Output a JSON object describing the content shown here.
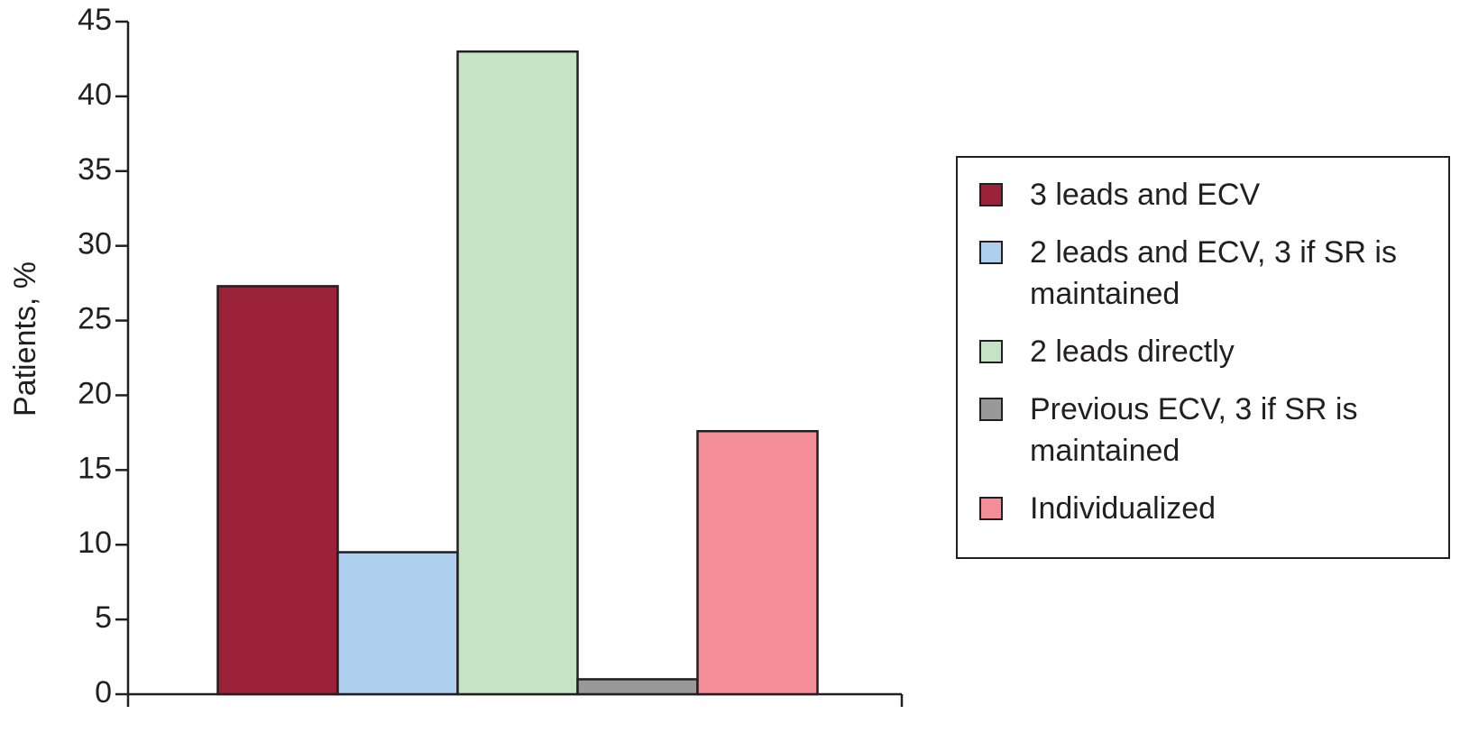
{
  "chart_data": {
    "type": "bar",
    "y_label": "Patients, %",
    "categories": [
      null
    ],
    "series": [
      {
        "name": "3 leads and ECV",
        "color": "#9b2238",
        "values": [
          27.3
        ]
      },
      {
        "name": "2 leads and ECV, 3 if SR is maintained",
        "color": "#aecfed",
        "values": [
          9.5
        ]
      },
      {
        "name": "2 leads directly",
        "color": "#c5e4c6",
        "values": [
          43
        ]
      },
      {
        "name": "Previous ECV, 3 if SR is maintained",
        "color": "#999999",
        "values": [
          1
        ]
      },
      {
        "name": "Individualized",
        "color": "#f48f9a",
        "values": [
          17.6
        ]
      }
    ],
    "ylim": [
      0,
      45
    ],
    "yticks": [
      0,
      5,
      10,
      15,
      20,
      25,
      30,
      35,
      40,
      45
    ],
    "grid": false,
    "legend": "right"
  }
}
